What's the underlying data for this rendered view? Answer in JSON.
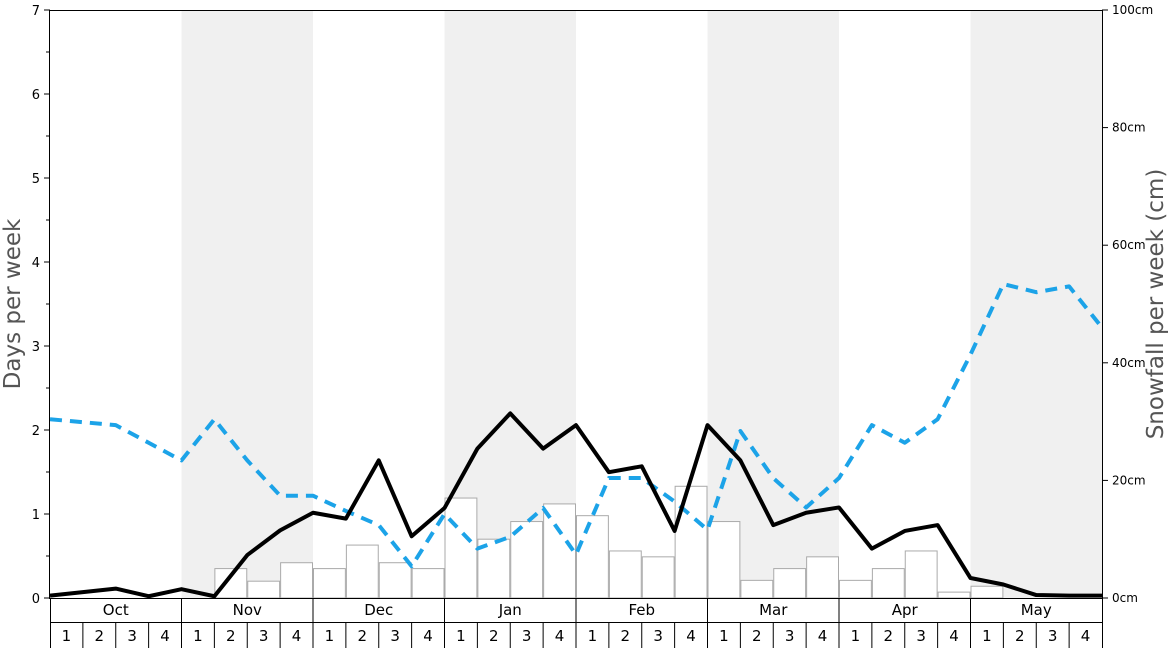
{
  "chart_data": {
    "type": "bar",
    "ylabel_left": "Days per week",
    "ylabel_right": "Snowfall per week (cm)",
    "ylim_left": [
      0,
      7
    ],
    "ylim_right": [
      0,
      100
    ],
    "left_ticks": [
      "0",
      "1",
      "2",
      "3",
      "4",
      "5",
      "6",
      "7"
    ],
    "right_ticks": [
      "0cm",
      "20cm",
      "40cm",
      "60cm",
      "80cm",
      "100cm"
    ],
    "months": [
      "Oct",
      "Nov",
      "Dec",
      "Jan",
      "Feb",
      "Mar",
      "Apr",
      "May"
    ],
    "week_labels": [
      "1",
      "2",
      "3",
      "4"
    ],
    "colors": {
      "bars": "#ffffff",
      "bar_border": "#aaaaaa",
      "snowfall_days_line": "#000000",
      "depth_line": "#1ca3e8",
      "band_shade": "#f0f0f0"
    },
    "series": [
      {
        "kind": "bars",
        "axis": "left",
        "values": [
          0,
          0,
          0,
          0,
          0,
          0.35,
          0.2,
          0.42,
          0.35,
          0.63,
          0.42,
          0.35,
          1.19,
          0.7,
          0.91,
          1.12,
          0.98,
          0.56,
          0.49,
          1.33,
          0.91,
          0.21,
          0.35,
          0.49,
          0.21,
          0.35,
          0.56,
          0.07,
          0.14,
          0,
          0,
          0
        ]
      },
      {
        "kind": "line",
        "style": "solid",
        "axis": "right",
        "values": [
          0.4,
          1.0,
          1.6,
          0.3,
          1.5,
          0.3,
          7.3,
          11.5,
          14.5,
          13.5,
          23.4,
          10.5,
          15.3,
          25.4,
          31.4,
          25.4,
          29.4,
          21.4,
          22.4,
          11.4,
          29.4,
          23.4,
          12.4,
          14.5,
          15.4,
          8.4,
          11.4,
          12.4,
          3.4,
          2.3,
          0.5,
          0.4
        ]
      },
      {
        "kind": "line",
        "style": "dashed",
        "axis": "right",
        "values": [
          30.4,
          29.9,
          29.4,
          26.4,
          23.4,
          30.4,
          23.4,
          17.4,
          17.4,
          14.8,
          12.4,
          5.4,
          14.3,
          8.4,
          10.4,
          15.3,
          7.4,
          20.4,
          20.4,
          16.4,
          11.6,
          28.4,
          20.4,
          15.4,
          20.4,
          29.4,
          26.4,
          30.4,
          41.4,
          53.4,
          52.0,
          53.0
        ]
      },
      {
        "kind": "line_tail",
        "style": "dashed",
        "axis": "right",
        "values": [
          46.0
        ]
      }
    ]
  }
}
